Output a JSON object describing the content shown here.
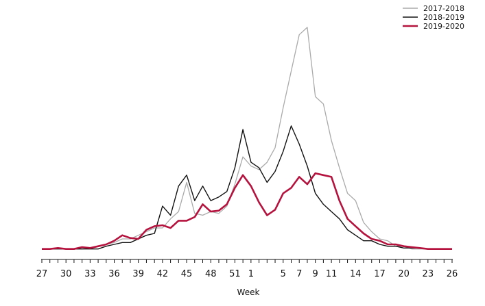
{
  "chart_data": {
    "type": "line",
    "title": "",
    "xlabel": "Week",
    "ylabel": "",
    "x": [
      "27",
      "28",
      "29",
      "30",
      "31",
      "32",
      "33",
      "34",
      "35",
      "36",
      "37",
      "38",
      "39",
      "40",
      "41",
      "42",
      "43",
      "44",
      "45",
      "46",
      "47",
      "48",
      "49",
      "50",
      "51",
      "52",
      "1",
      "2",
      "3",
      "4",
      "5",
      "6",
      "7",
      "8",
      "9",
      "10",
      "11",
      "12",
      "13",
      "14",
      "15",
      "16",
      "17",
      "18",
      "19",
      "20",
      "21",
      "22",
      "23",
      "24",
      "25",
      "26"
    ],
    "x_tick_labels": [
      "27",
      "30",
      "33",
      "36",
      "39",
      "42",
      "45",
      "48",
      "51",
      "1",
      "5",
      "7",
      "9",
      "11",
      "14",
      "17",
      "20",
      "23",
      "26"
    ],
    "legend_position": "top-right",
    "grid": false,
    "ylim": [
      0,
      100
    ],
    "series": [
      {
        "name": "2017-2018",
        "color": "#aaaaaa",
        "values": [
          0.5,
          0.5,
          1,
          0.5,
          0.5,
          0.5,
          1,
          2,
          3,
          4,
          6,
          6,
          8,
          10,
          12,
          12,
          17,
          21,
          37,
          20,
          19,
          21,
          20,
          24,
          36,
          51,
          46,
          44,
          48,
          56,
          78,
          98,
          118,
          122,
          84,
          80,
          60,
          45,
          31,
          27,
          15,
          10,
          6,
          5,
          2,
          2,
          0.5,
          0.5,
          0.5,
          0.5,
          0.5,
          0.5
        ]
      },
      {
        "name": "2018-2019",
        "color": "#111111",
        "values": [
          0.5,
          0.5,
          0.5,
          0.5,
          0.5,
          0.5,
          0.5,
          0.5,
          2,
          3,
          4,
          4,
          6,
          8,
          9,
          24,
          19,
          35,
          41,
          27,
          35,
          27,
          29,
          32,
          45,
          66,
          48,
          45,
          37,
          43,
          54,
          68,
          58,
          46,
          31,
          25,
          21,
          17,
          11,
          8,
          5,
          5,
          3,
          2,
          2,
          1,
          1,
          1,
          0.5,
          0.5,
          0.5,
          0.5
        ]
      },
      {
        "name": "2019-2020",
        "color": "#b5123e",
        "values": [
          0.5,
          0.5,
          1,
          0.5,
          0.5,
          1.5,
          1,
          2,
          3,
          5,
          8,
          6.5,
          6,
          11,
          13,
          13.5,
          12,
          16,
          16,
          18,
          25,
          21,
          21.5,
          25,
          34,
          41,
          35,
          26,
          19,
          22,
          31,
          34,
          40,
          36,
          42,
          41,
          40,
          27,
          17,
          13,
          9,
          6,
          5,
          3,
          3,
          2,
          1.5,
          1,
          0.5,
          0.5,
          0.5,
          0.5
        ]
      }
    ]
  }
}
